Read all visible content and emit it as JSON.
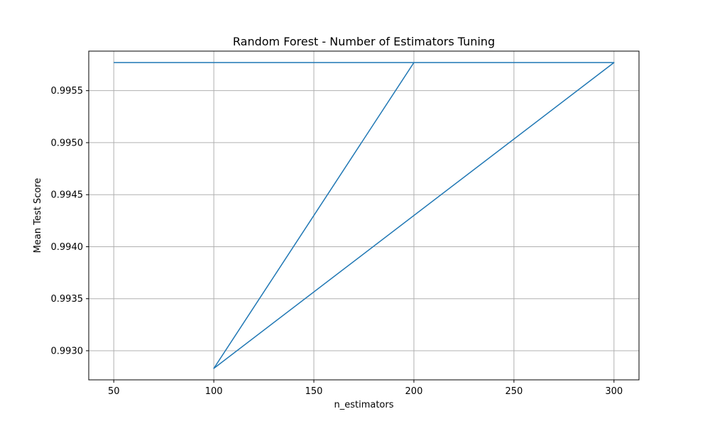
{
  "chart_data": {
    "type": "line",
    "title": "Random Forest - Number of Estimators Tuning",
    "xlabel": "n_estimators",
    "ylabel": "Mean Test Score",
    "x_ticks": [
      50,
      100,
      150,
      200,
      250,
      300
    ],
    "y_ticks": [
      0.993,
      0.9935,
      0.994,
      0.9945,
      0.995,
      0.9955
    ],
    "y_tick_labels": [
      "0.9930",
      "0.9935",
      "0.9940",
      "0.9945",
      "0.9950",
      "0.9955"
    ],
    "xlim": [
      37.5,
      312.5
    ],
    "ylim": [
      0.99272,
      0.99588
    ],
    "grid": true,
    "series": [
      {
        "color": "#1f77b4",
        "x": [
          50,
          300,
          100,
          200,
          300,
          100,
          200,
          300
        ],
        "y": [
          0.99577,
          0.99577,
          0.99283,
          0.99577,
          0.99577,
          0.99283,
          0.99577,
          0.99577
        ]
      }
    ]
  }
}
